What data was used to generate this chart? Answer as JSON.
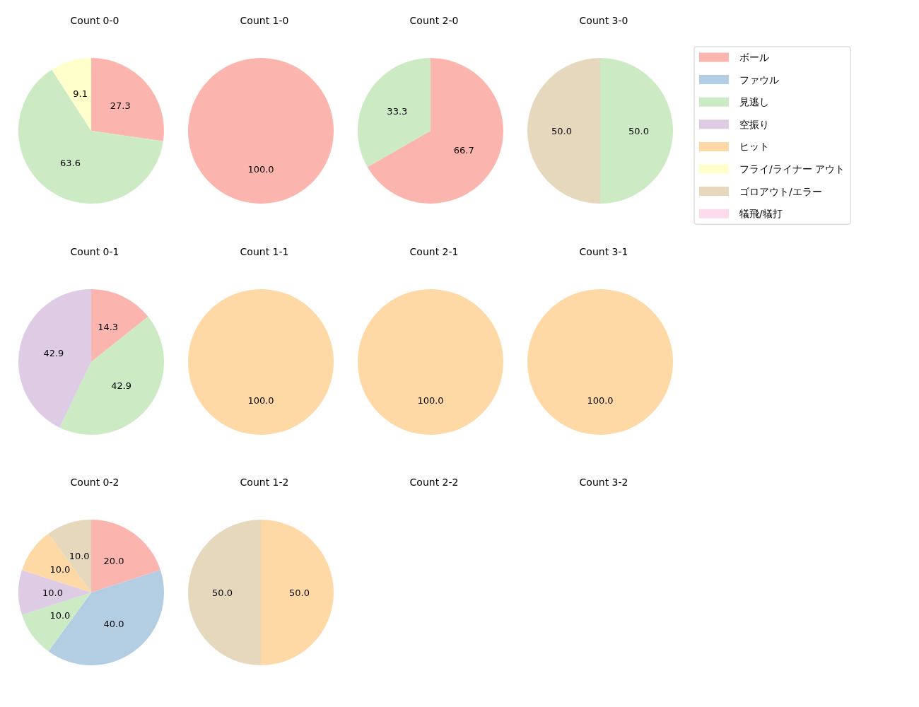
{
  "chart_data": [
    {
      "type": "pie",
      "title": "Count 0-0",
      "categories": [
        null,
        null,
        null
      ],
      "colors": [
        "#fbb4ae",
        "#ccebc5",
        "#ffffcc"
      ],
      "values": [
        27.3,
        63.6,
        9.1
      ],
      "value_labels": [
        "27.3",
        "63.6",
        "9.1"
      ]
    },
    {
      "type": "pie",
      "title": "Count 1-0",
      "categories": [
        null
      ],
      "colors": [
        "#fbb4ae"
      ],
      "values": [
        100
      ],
      "value_labels": [
        "100.0"
      ]
    },
    {
      "type": "pie",
      "title": "Count 2-0",
      "categories": [
        null,
        null
      ],
      "colors": [
        "#fbb4ae",
        "#ccebc5"
      ],
      "values": [
        66.7,
        33.3
      ],
      "value_labels": [
        "66.7",
        "33.3"
      ]
    },
    {
      "type": "pie",
      "title": "Count 3-0",
      "legend": "right",
      "categories": [
        "ボール",
        "ファウル",
        "見逃し",
        "空振り",
        "ヒット",
        "フライ/ライナー アウト",
        "ゴロアウト/エラー",
        "犠飛/犠打"
      ],
      "colors": [
        "#fbb4ae",
        "#b3cde3",
        "#ccebc5",
        "#decbe4",
        "#fed9a6",
        "#ffffcc",
        "#e5d8bd",
        "#fddaec"
      ],
      "values": [
        null,
        null,
        50,
        null,
        null,
        null,
        50,
        null
      ],
      "value_labels": [
        null,
        null,
        "50.0",
        null,
        null,
        null,
        "50.0",
        null
      ]
    },
    {
      "type": "pie",
      "title": "Count 0-1",
      "categories": [
        null,
        null,
        null
      ],
      "colors": [
        "#fbb4ae",
        "#ccebc5",
        "#decbe4"
      ],
      "values": [
        14.3,
        42.9,
        42.9
      ],
      "value_labels": [
        "14.3",
        "42.9",
        "42.9"
      ]
    },
    {
      "type": "pie",
      "title": "Count 1-1",
      "categories": [
        null
      ],
      "colors": [
        "#fed9a6"
      ],
      "values": [
        100
      ],
      "value_labels": [
        "100.0"
      ]
    },
    {
      "type": "pie",
      "title": "Count 2-1",
      "categories": [
        null
      ],
      "colors": [
        "#fed9a6"
      ],
      "values": [
        100
      ],
      "value_labels": [
        "100.0"
      ]
    },
    {
      "type": "pie",
      "title": "Count 3-1",
      "categories": [
        null
      ],
      "colors": [
        "#fed9a6"
      ],
      "values": [
        100
      ],
      "value_labels": [
        "100.0"
      ]
    },
    {
      "type": "pie",
      "title": "Count 0-2",
      "categories": [
        null,
        null,
        null,
        null,
        null,
        null
      ],
      "colors": [
        "#fbb4ae",
        "#b3cde3",
        "#ccebc5",
        "#decbe4",
        "#fed9a6",
        "#e5d8bd"
      ],
      "values": [
        20,
        40,
        10,
        10,
        10,
        10
      ],
      "value_labels": [
        "20.0",
        "40.0",
        "10.0",
        "10.0",
        "10.0",
        "10.0"
      ]
    },
    {
      "type": "pie",
      "title": "Count 1-2",
      "categories": [
        null,
        null
      ],
      "colors": [
        "#fed9a6",
        "#e5d8bd"
      ],
      "values": [
        50,
        50
      ],
      "value_labels": [
        "50.0",
        "50.0"
      ]
    },
    {
      "type": "other",
      "title": "Count 2-2"
    },
    {
      "type": "other",
      "title": "Count 3-2"
    }
  ]
}
